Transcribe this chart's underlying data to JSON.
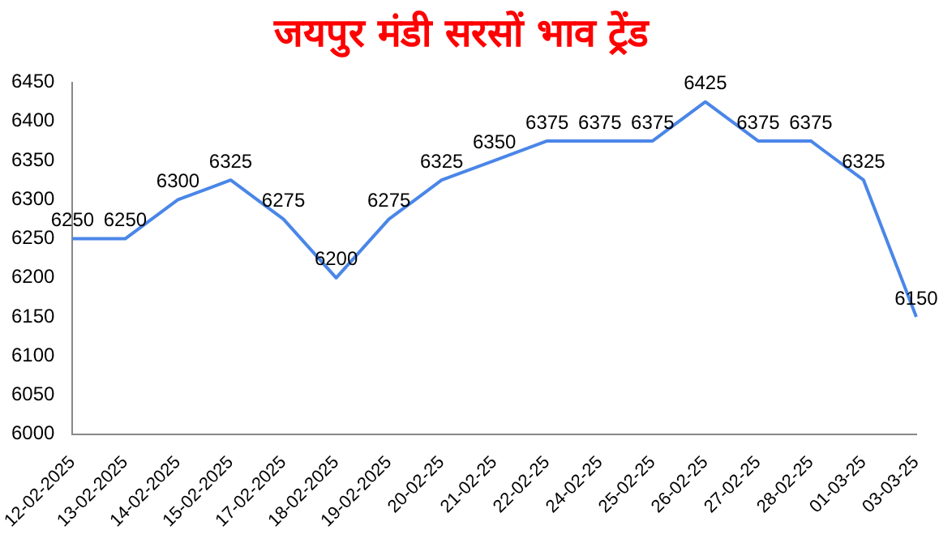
{
  "chart_data": {
    "type": "line",
    "title": "जयपुर मंडी सरसों भाव ट्रेंड",
    "categories": [
      "12-02-2025",
      "13-02-2025",
      "14-02-2025",
      "15-02-2025",
      "17-02-2025",
      "18-02-2025",
      "19-02-2025",
      "20-02-25",
      "21-02-25",
      "22-02-25",
      "24-02-25",
      "25-02-25",
      "26-02-25",
      "27-02-25",
      "28-02-25",
      "01-03-25",
      "03-03-25"
    ],
    "series": [
      {
        "color": "#4a86e8",
        "values": [
          6250,
          6250,
          6300,
          6325,
          6275,
          6200,
          6275,
          6325,
          6350,
          6375,
          6375,
          6375,
          6425,
          6375,
          6375,
          6325,
          6150
        ]
      }
    ],
    "ylim": [
      6000,
      6450
    ],
    "yticks": [
      6000,
      6050,
      6100,
      6150,
      6200,
      6250,
      6300,
      6350,
      6400,
      6450
    ],
    "grid": false,
    "legend": false,
    "marker": "none",
    "line_style": "solid",
    "data_labels": true
  }
}
